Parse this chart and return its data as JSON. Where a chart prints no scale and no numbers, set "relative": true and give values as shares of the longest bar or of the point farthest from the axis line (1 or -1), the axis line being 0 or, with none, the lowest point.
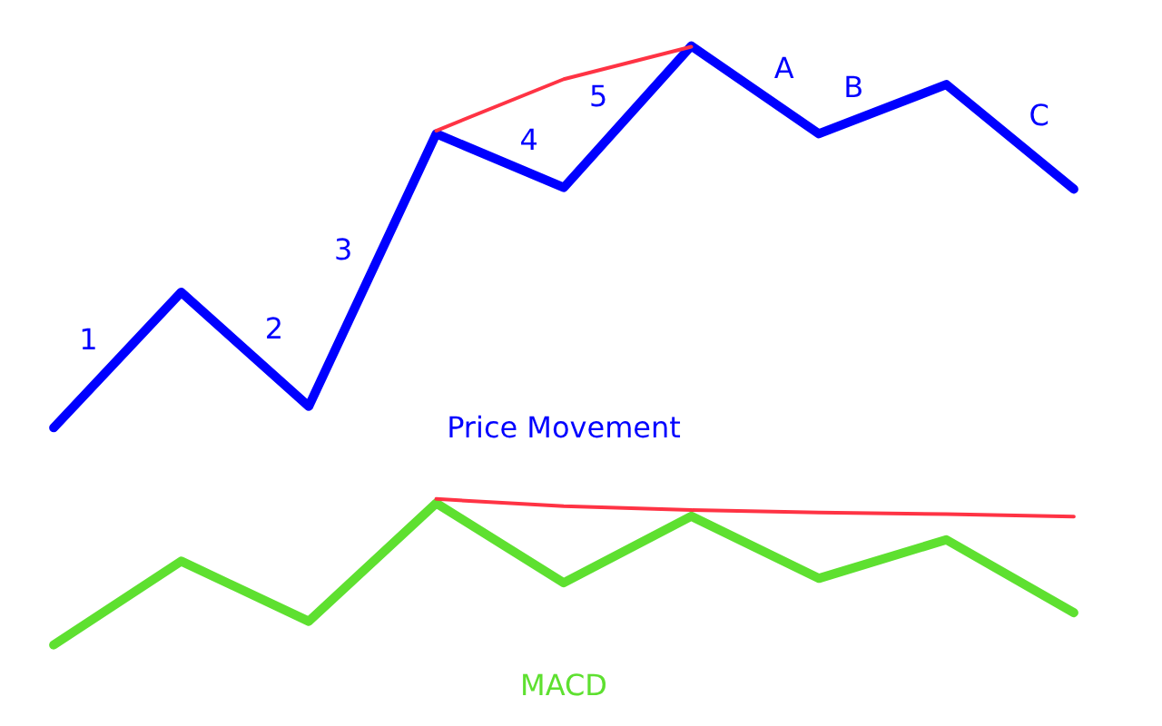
{
  "chart_data": [
    {
      "type": "line",
      "relative": true,
      "line_style": "solid",
      "categories": [
        null,
        null,
        null,
        null,
        null,
        null,
        null,
        null,
        null
      ],
      "series": [
        {
          "name": "Price Movement",
          "color": "#0000ff",
          "values": [
            0,
            0.355,
            0.056,
            0.77,
            0.629,
            1,
            0.77,
            0.899,
            0.625
          ]
        },
        {
          "color": "#ff3344",
          "values": [
            null,
            null,
            null,
            0.778,
            0.913,
            0.998,
            null,
            null,
            null
          ]
        }
      ],
      "annotations": [
        "1",
        "2",
        "3",
        "4",
        "5",
        "A",
        "B",
        "C"
      ]
    },
    {
      "type": "line",
      "relative": true,
      "line_style": "solid",
      "categories": [
        null,
        null,
        null,
        null,
        null,
        null,
        null,
        null,
        null
      ],
      "series": [
        {
          "name": "MACD",
          "color": "#5ee030",
          "values": [
            0,
            0.574,
            0.162,
            0.971,
            0.426,
            0.882,
            0.456,
            0.721,
            0.221
          ]
        },
        {
          "color": "#ff3344",
          "values": [
            null,
            null,
            null,
            1,
            0.951,
            0.924,
            0.907,
            0.897,
            0.879
          ]
        }
      ]
    }
  ]
}
